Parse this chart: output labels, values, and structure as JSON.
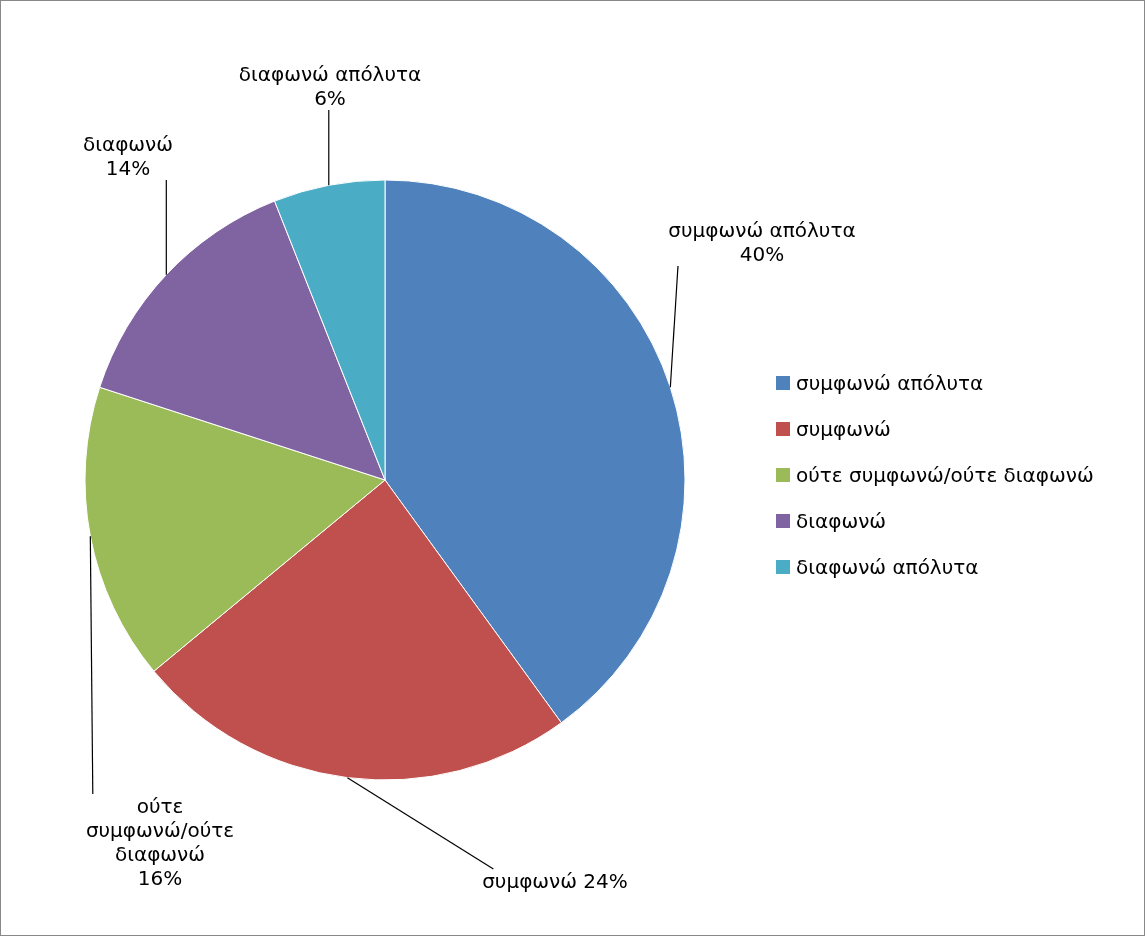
{
  "chart_data": {
    "type": "pie",
    "categories": [
      "συμφωνώ απόλυτα",
      "συμφωνώ",
      "ούτε συμφωνώ/ούτε διαφωνώ",
      "διαφωνώ",
      "διαφωνώ απόλυτα"
    ],
    "values": [
      40,
      24,
      16,
      14,
      6
    ],
    "colors": [
      "#4f81bd",
      "#c0504d",
      "#9bbb59",
      "#8064a2",
      "#4bacc6"
    ],
    "value_labels": [
      "40%",
      "24%",
      "16%",
      "14%",
      "6%"
    ],
    "legend": "right"
  }
}
